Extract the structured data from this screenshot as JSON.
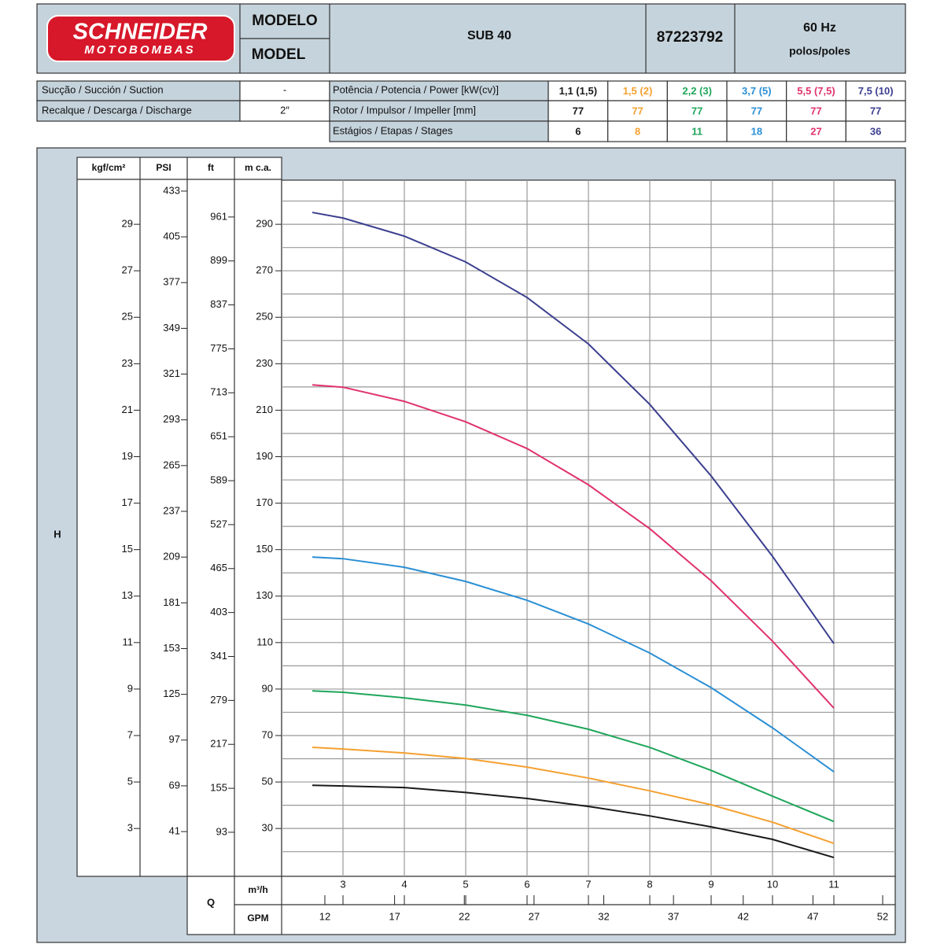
{
  "header": {
    "brand": "SCHNEIDER",
    "brand_sub": "MOTOBOMBAS",
    "model_label": [
      "MODELO",
      "MODEL"
    ],
    "model": "SUB 40",
    "code": "87223792",
    "frequency": "60 Hz",
    "poles": "polos/poles"
  },
  "specs": {
    "suction_label": "Sucção / Succión / Suction",
    "suction_value": "-",
    "discharge_label": "Recalque / Descarga / Discharge",
    "discharge_value": "2″",
    "power_label": "Potência / Potencia / Power [kW(cv)]",
    "impeller_label": "Rotor / Impulsor / Impeller [mm]",
    "stages_label": "Estágios / Etapas / Stages"
  },
  "chart_data": {
    "type": "line",
    "y_title": "H",
    "y_label": "m c.a.",
    "x_title": "Q",
    "x_label": "m³/h",
    "xlim": [
      2,
      12
    ],
    "xticks": [
      3,
      4,
      5,
      6,
      7,
      8,
      9,
      10,
      11
    ],
    "ylim": [
      9.4,
      309
    ],
    "yticks": [
      30,
      50,
      70,
      90,
      110,
      130,
      150,
      170,
      190,
      210,
      230,
      250,
      270,
      290
    ],
    "ygrid": [
      20,
      40,
      60,
      80,
      100,
      120,
      140,
      160,
      180,
      200,
      220,
      240,
      260,
      280,
      300
    ],
    "grid": true,
    "secondary_axes": [
      {
        "label": "kgf/cm²",
        "lim": [
          0.94,
          30.9
        ],
        "ticks": [
          3,
          5,
          7,
          9,
          11,
          13,
          15,
          17,
          19,
          21,
          23,
          25,
          27,
          29
        ]
      },
      {
        "label": "PSI",
        "lim": [
          13.6,
          439.7
        ],
        "ticks": [
          41,
          69,
          97,
          125,
          153,
          181,
          209,
          237,
          265,
          293,
          321,
          349,
          377,
          405,
          433
        ]
      },
      {
        "label": "ft",
        "lim": [
          30.8,
          1013
        ],
        "ticks": [
          93,
          155,
          217,
          279,
          341,
          403,
          465,
          527,
          589,
          651,
          713,
          775,
          837,
          899,
          961
        ]
      }
    ],
    "x2": {
      "label": "GPM",
      "lim": [
        8.9,
        52.9
      ],
      "ticks": [
        12,
        17,
        22,
        27,
        32,
        37,
        42,
        47,
        52
      ]
    },
    "x": [
      2.5,
      3,
      4,
      5,
      6,
      7,
      8,
      9,
      10,
      11
    ],
    "series": [
      {
        "name": "1,1 (1,5)",
        "color": "#1a1a1a",
        "impeller": 77,
        "stages": 6,
        "values": [
          48.6,
          48.3,
          47.6,
          45.5,
          42.9,
          39.5,
          35.4,
          30.7,
          25.3,
          17.5
        ]
      },
      {
        "name": "1,5 (2)",
        "color": "#f5a030",
        "impeller": 77,
        "stages": 8,
        "values": [
          64.9,
          64.2,
          62.5,
          60.1,
          56.4,
          51.7,
          46.2,
          40.2,
          32.7,
          23.6
        ]
      },
      {
        "name": "2,2 (3)",
        "color": "#1fa65a",
        "impeller": 77,
        "stages": 11,
        "values": [
          89.2,
          88.6,
          86.2,
          83.1,
          78.7,
          72.7,
          64.9,
          55,
          43.9,
          33
        ]
      },
      {
        "name": "3,7 (5)",
        "color": "#2a8fd4",
        "impeller": 77,
        "stages": 18,
        "values": [
          146.8,
          146.1,
          142.4,
          136.3,
          128.2,
          118,
          105.5,
          90.6,
          73.3,
          54.4
        ]
      },
      {
        "name": "5,5 (7,5)",
        "color": "#e0336b",
        "impeller": 77,
        "stages": 27,
        "values": [
          220.9,
          219.9,
          213.8,
          205,
          193.5,
          177.9,
          159,
          136.6,
          110.6,
          81.8
        ]
      },
      {
        "name": "7,5 (10)",
        "color": "#3b3f8f",
        "impeller": 77,
        "stages": 36,
        "values": [
          295.1,
          292.7,
          284.9,
          273.8,
          258.5,
          238.5,
          212.5,
          181.7,
          147.1,
          109.6
        ]
      }
    ]
  }
}
